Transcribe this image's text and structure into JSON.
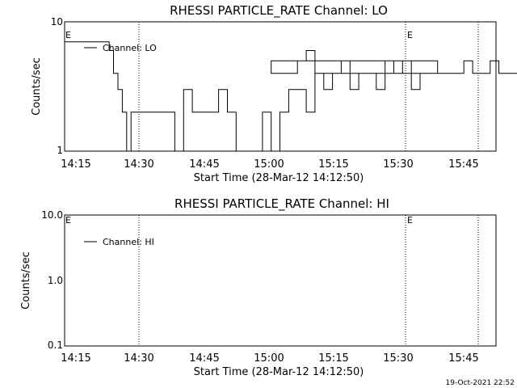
{
  "chart_data": [
    {
      "type": "line",
      "title": "RHESSI PARTICLE_RATE Channel: LO",
      "xlabel": "Start Time (28-Mar-12 14:12:50)",
      "ylabel": "Counts/sec",
      "y_scale": "log",
      "ylim": [
        1,
        10
      ],
      "y_ticks": [
        "1",
        "10"
      ],
      "x_ticks": [
        "14:15",
        "14:30",
        "14:45",
        "15:00",
        "15:15",
        "15:30",
        "15:45"
      ],
      "event_markers": [
        "E",
        "E"
      ],
      "grid": false,
      "legend": "top-left",
      "series": [
        {
          "name": "Channel: LO",
          "x": [
            14.22,
            14.23,
            14.24,
            14.25,
            14.26,
            14.27,
            14.28,
            14.3,
            14.32,
            14.34,
            14.36,
            14.38,
            14.4,
            14.42,
            14.44,
            14.46,
            14.48,
            14.5,
            14.52,
            14.54,
            14.56,
            14.58,
            14.6,
            14.62,
            14.64,
            14.66,
            14.68,
            14.7,
            14.72,
            14.74,
            14.76,
            14.78,
            14.8,
            14.82,
            14.84,
            14.86,
            14.88,
            14.9,
            14.92,
            14.94,
            14.96,
            14.98,
            15.0,
            15.02,
            15.04,
            15.06,
            15.08,
            15.1,
            15.12,
            15.14,
            15.16,
            15.18,
            15.2,
            15.22,
            15.24,
            15.26,
            15.28,
            15.3,
            15.32,
            15.34,
            15.36,
            15.38,
            15.4,
            15.42,
            15.44,
            15.46,
            15.48,
            15.5,
            15.52,
            15.54,
            15.56,
            15.58,
            15.6,
            15.62,
            15.64,
            15.66,
            15.68,
            15.7,
            15.72,
            15.74,
            15.76,
            15.78,
            15.8,
            15.82,
            15.84,
            15.86,
            15.88,
            15.9,
            15.92,
            15.94,
            15.96,
            15.98
          ],
          "values": [
            7,
            6,
            4,
            3,
            2,
            1,
            2,
            2,
            2,
            2,
            2,
            1,
            3,
            2,
            2,
            2,
            3,
            2,
            1,
            1,
            1,
            2,
            1,
            2,
            3,
            3,
            2,
            4,
            3,
            4,
            4,
            3,
            4,
            4,
            3,
            4,
            4,
            5,
            4,
            4,
            4,
            5,
            4,
            4,
            4,
            5,
            6,
            4,
            4,
            4,
            5,
            4,
            4,
            4,
            4,
            5,
            4,
            4,
            3,
            4,
            4,
            4,
            4,
            4,
            5,
            4,
            4,
            5,
            4,
            4,
            4,
            4,
            5,
            4,
            3,
            3,
            2,
            3,
            3,
            2,
            2,
            2,
            1,
            2,
            1,
            1,
            1,
            1,
            2,
            1,
            2,
            1
          ]
        }
      ]
    },
    {
      "type": "line",
      "title": "RHESSI PARTICLE_RATE Channel: HI",
      "xlabel": "Start Time (28-Mar-12 14:12:50)",
      "ylabel": "Counts/sec",
      "y_scale": "log",
      "ylim": [
        0.1,
        10
      ],
      "y_ticks": [
        "0.1",
        "1.0",
        "10.0"
      ],
      "x_ticks": [
        "14:15",
        "14:30",
        "14:45",
        "15:00",
        "15:15",
        "15:30",
        "15:45"
      ],
      "event_markers": [
        "E",
        "E"
      ],
      "grid": false,
      "legend": "top-left",
      "series": [
        {
          "name": "Channel: HI",
          "x": [],
          "values": []
        }
      ]
    }
  ],
  "footer": {
    "timestamp": "19-Oct-2021 22:52"
  }
}
